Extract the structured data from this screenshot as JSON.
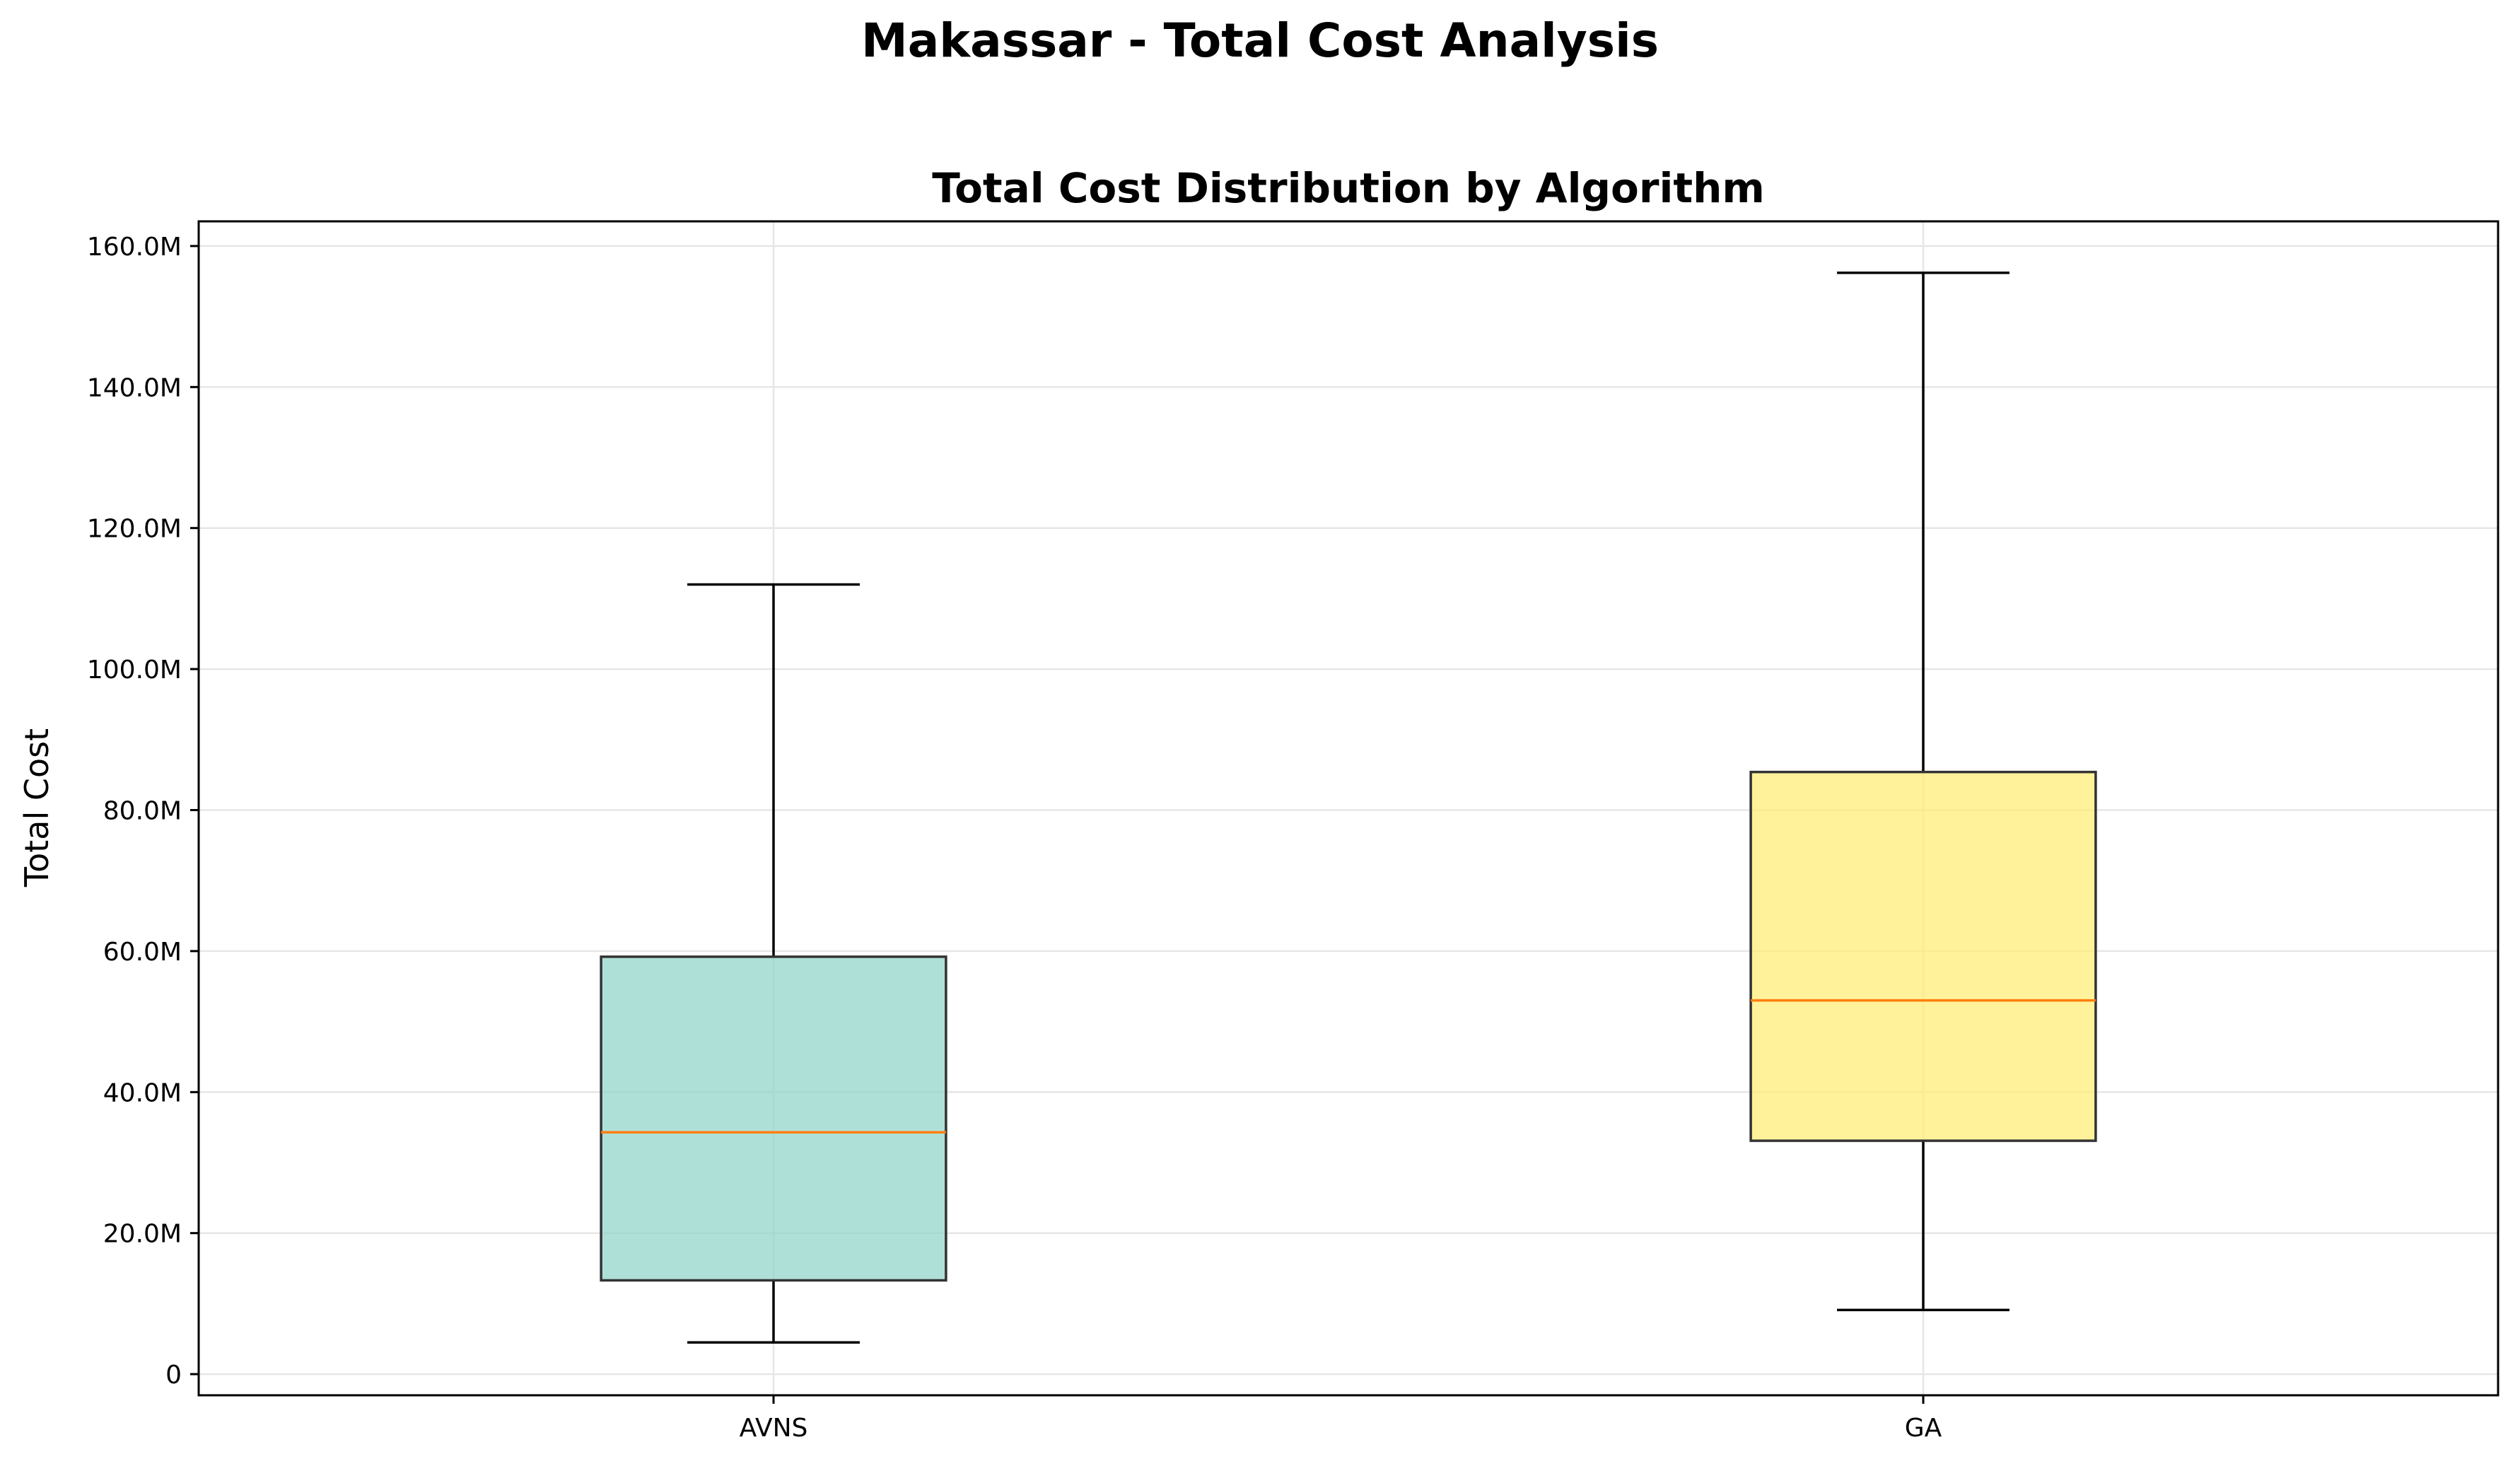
{
  "chart_data": {
    "type": "box",
    "suptitle": "Makassar - Total Cost Analysis",
    "title": "Total Cost Distribution by Algorithm",
    "xlabel": "",
    "ylabel": "Total Cost",
    "ylim": [
      -3000000,
      163500000
    ],
    "yticks": [
      0,
      20000000,
      40000000,
      60000000,
      80000000,
      100000000,
      120000000,
      140000000,
      160000000
    ],
    "ytick_labels": [
      "0",
      "20.0M",
      "40.0M",
      "60.0M",
      "80.0M",
      "100.0M",
      "120.0M",
      "140.0M",
      "160.0M"
    ],
    "grid": true,
    "categories": [
      "AVNS",
      "GA"
    ],
    "boxes": [
      {
        "name": "AVNS",
        "whisker_low": 4500000,
        "q1": 13300000,
        "median": 34300000,
        "q3": 59200000,
        "whisker_high": 112000000,
        "color": "#8dd3c7"
      },
      {
        "name": "GA",
        "whisker_low": 9100000,
        "q1": 33100000,
        "median": 53000000,
        "q3": 85400000,
        "whisker_high": 156200000,
        "color": "#ffed6f"
      }
    ],
    "median_color": "#ff7f0e",
    "box_edge_color": "#333333",
    "whisker_color": "#000000",
    "grid_color": "#e6e6e6"
  }
}
